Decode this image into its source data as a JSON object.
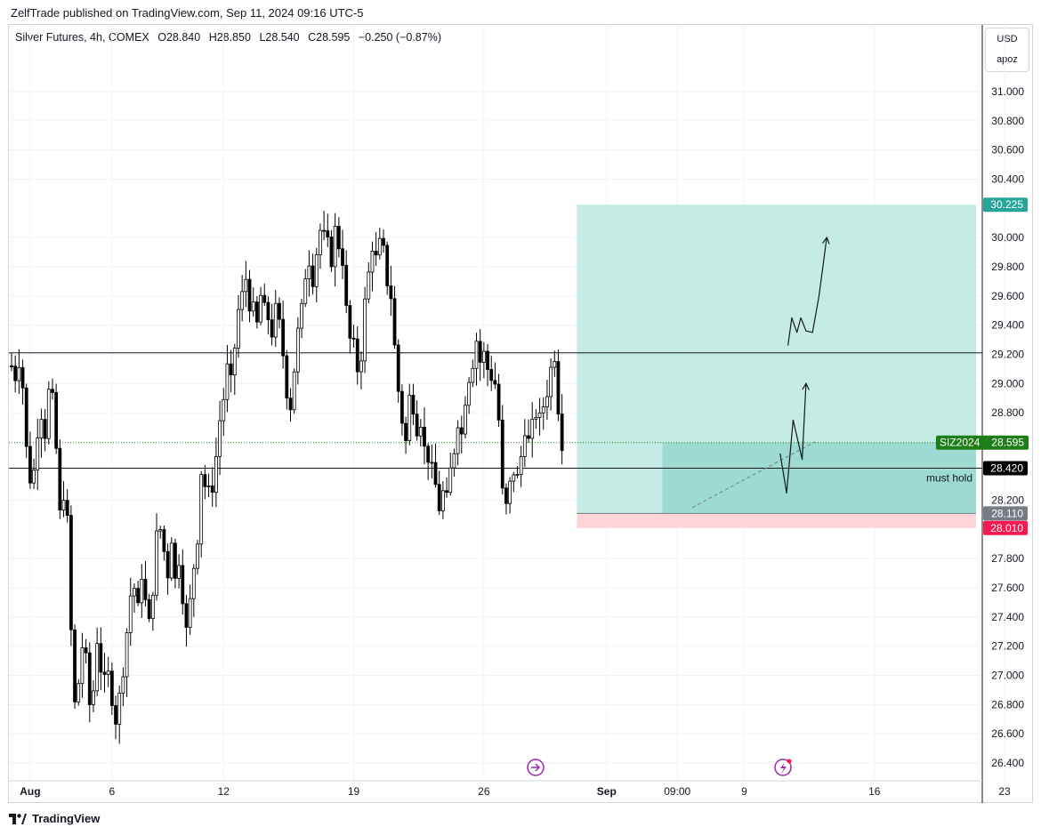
{
  "publish_line": "ZelfTrade published on TradingView.com, Sep 11, 2024 09:16 UTC-5",
  "legend": {
    "symbol": "Silver Futures, 4h, COMEX",
    "open_label": "O",
    "open": "28.840",
    "high_label": "H",
    "high": "28.850",
    "low_label": "L",
    "low": "28.540",
    "close_label": "C",
    "close": "28.595",
    "change": "−0.250 (−0.87%)"
  },
  "currency": {
    "unit": "USD",
    "sub": "apoz"
  },
  "footer": {
    "brand": "TradingView",
    "logo_icon": "tradingview-logo-icon"
  },
  "colors": {
    "bull_body": "#ffffff",
    "bear_body": "#000000",
    "wick": "#000000",
    "profit_zone": "#b2e6db",
    "loss_zone": "#ffc9d0",
    "target_tag": "#26a69a",
    "stop_tag": "#f7194e",
    "entry_tag": "#787b86",
    "symbol_tag": "#1e7f1a"
  },
  "chart_data": {
    "type": "candlestick",
    "interval": "4h",
    "ylim": [
      26.27,
      31.28
    ],
    "y_ticks": [
      "31.000",
      "30.800",
      "30.600",
      "30.400",
      "30.000",
      "29.800",
      "29.600",
      "29.400",
      "29.200",
      "29.000",
      "28.800",
      "28.200",
      "27.800",
      "27.600",
      "27.400",
      "27.200",
      "27.000",
      "26.800",
      "26.600",
      "26.400"
    ],
    "y_tick_values": [
      31.0,
      30.8,
      30.6,
      30.4,
      30.0,
      29.8,
      29.6,
      29.4,
      29.2,
      29.0,
      28.8,
      28.2,
      27.8,
      27.6,
      27.4,
      27.2,
      27.0,
      26.8,
      26.6,
      26.4
    ],
    "x_ticks": [
      {
        "label": "Aug",
        "bar": 5,
        "bold": true
      },
      {
        "label": "6",
        "bar": 27
      },
      {
        "label": "12",
        "bar": 57
      },
      {
        "label": "19",
        "bar": 92
      },
      {
        "label": "26",
        "bar": 127
      },
      {
        "label": "Sep",
        "bar": 160,
        "bold": true
      },
      {
        "label": "09:00",
        "bar": 179
      },
      {
        "label": "9",
        "bar": 197
      },
      {
        "label": "16",
        "bar": 232
      },
      {
        "label": "23",
        "bar": 267
      }
    ],
    "trend_path": [
      29.12,
      29.05,
      29.16,
      28.98,
      28.55,
      28.35,
      28.4,
      28.68,
      28.8,
      28.66,
      28.94,
      28.88,
      28.55,
      28.1,
      28.25,
      28.05,
      27.3,
      26.8,
      26.95,
      27.2,
      27.1,
      26.8,
      26.9,
      27.25,
      27.05,
      26.95,
      27.0,
      26.85,
      26.7,
      26.85,
      27.05,
      27.3,
      27.55,
      27.6,
      27.45,
      27.7,
      27.5,
      27.35,
      27.6,
      27.95,
      28.0,
      27.85,
      27.7,
      27.95,
      27.65,
      27.8,
      27.55,
      27.3,
      27.5,
      27.75,
      27.95,
      28.4,
      28.3,
      28.25,
      28.3,
      28.5,
      28.75,
      28.9,
      29.1,
      29.0,
      29.25,
      29.5,
      29.6,
      29.72,
      29.55,
      29.5,
      29.4,
      29.6,
      29.5,
      29.45,
      29.35,
      29.5,
      29.4,
      29.2,
      28.95,
      28.85,
      29.1,
      29.35,
      29.5,
      29.75,
      29.85,
      29.72,
      29.9,
      30.05,
      30.0,
      29.95,
      29.85,
      30.05,
      29.95,
      29.85,
      29.5,
      29.3,
      29.25,
      29.1,
      29.2,
      29.55,
      29.75,
      29.95,
      29.85,
      29.95,
      29.9,
      29.7,
      29.6,
      29.25,
      28.95,
      28.75,
      28.6,
      28.9,
      28.85,
      28.7,
      28.75,
      28.55,
      28.5,
      28.4,
      28.3,
      28.15,
      28.25,
      28.2,
      28.4,
      28.55,
      28.75,
      28.65,
      28.9,
      29.05,
      29.15,
      29.3,
      29.15,
      29.2,
      29.1,
      29.05,
      29.0,
      28.75,
      28.25,
      28.15,
      28.3,
      28.4,
      28.35,
      28.5,
      28.7,
      28.6,
      28.7,
      28.8,
      28.75,
      28.85,
      28.95,
      29.1,
      29.2,
      28.84,
      28.6
    ],
    "bar_count_total": 276,
    "first_bar_px": 13,
    "bar_spacing_px": 4.18,
    "price_lines": [
      29.21,
      28.42
    ],
    "last_price": 28.595,
    "dashed_trend": {
      "from": [
        28.15,
        183
      ],
      "to": [
        28.6,
        216
      ]
    },
    "position": {
      "type": "long",
      "target": 30.225,
      "entry": 28.11,
      "stop": 28.01,
      "start_bar": 152,
      "end_bar": 261
    },
    "annotations": {
      "level_note": "must hold",
      "arrow_up_big": [
        [
          30.4,
          29.26
        ],
        [
          30.55,
          29.45
        ],
        [
          30.75,
          29.35
        ],
        [
          30.9,
          29.45
        ],
        [
          31.1,
          29.36
        ],
        [
          31.35,
          29.35
        ],
        [
          31.6,
          29.6
        ],
        [
          31.9,
          30.0
        ]
      ],
      "arrow_up_small": [
        [
          30.1,
          28.52
        ],
        [
          30.35,
          28.25
        ],
        [
          30.6,
          28.75
        ],
        [
          30.95,
          28.48
        ],
        [
          31.1,
          29.0
        ]
      ]
    },
    "price_tags": [
      {
        "label": "30.225",
        "value": 30.225,
        "role": "target"
      },
      {
        "label": "28.420",
        "value": 28.42,
        "role": "line"
      },
      {
        "label": "28.110",
        "value": 28.11,
        "role": "entry"
      },
      {
        "label": "28.010",
        "value": 28.01,
        "role": "stop"
      }
    ],
    "symbol_tag": {
      "name": "SIZ2024",
      "value": "28.595"
    },
    "icons": [
      "news-arrow-icon",
      "lightning-event-icon"
    ]
  }
}
